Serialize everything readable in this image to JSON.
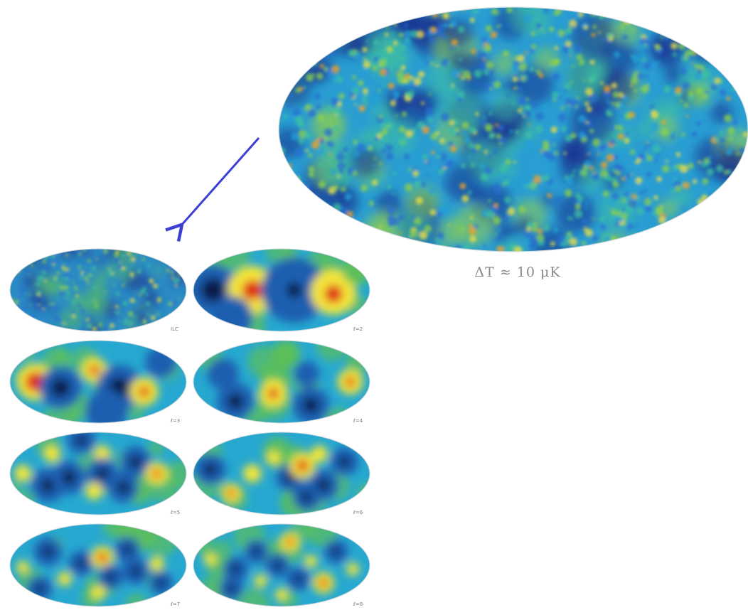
{
  "main_map": {
    "caption": "ΔT ≈ 10 μK",
    "palette": [
      "#1a2d8c",
      "#2a6fd0",
      "#20a0d8",
      "#3fc0a0",
      "#8fd04a",
      "#f0e040",
      "#f5a020"
    ]
  },
  "arrow": {
    "color": "#3b3fd4"
  },
  "panels": [
    {
      "label": "ILC",
      "kind": "noise"
    },
    {
      "label": "ℓ=2",
      "kind": "l2"
    },
    {
      "label": "ℓ=3",
      "kind": "l3"
    },
    {
      "label": "ℓ=4",
      "kind": "l4"
    },
    {
      "label": "ℓ=5",
      "kind": "l5"
    },
    {
      "label": "ℓ=6",
      "kind": "l6"
    },
    {
      "label": "ℓ=7",
      "kind": "l7"
    },
    {
      "label": "ℓ=8",
      "kind": "l8"
    }
  ],
  "multipole_palette": {
    "background": "#2a9a80",
    "deep": "#0c1a4a",
    "blue": "#1d5fb0",
    "cyan": "#26a8d0",
    "green": "#5cbf5a",
    "yellow": "#f2e53a",
    "red": "#e02818"
  }
}
